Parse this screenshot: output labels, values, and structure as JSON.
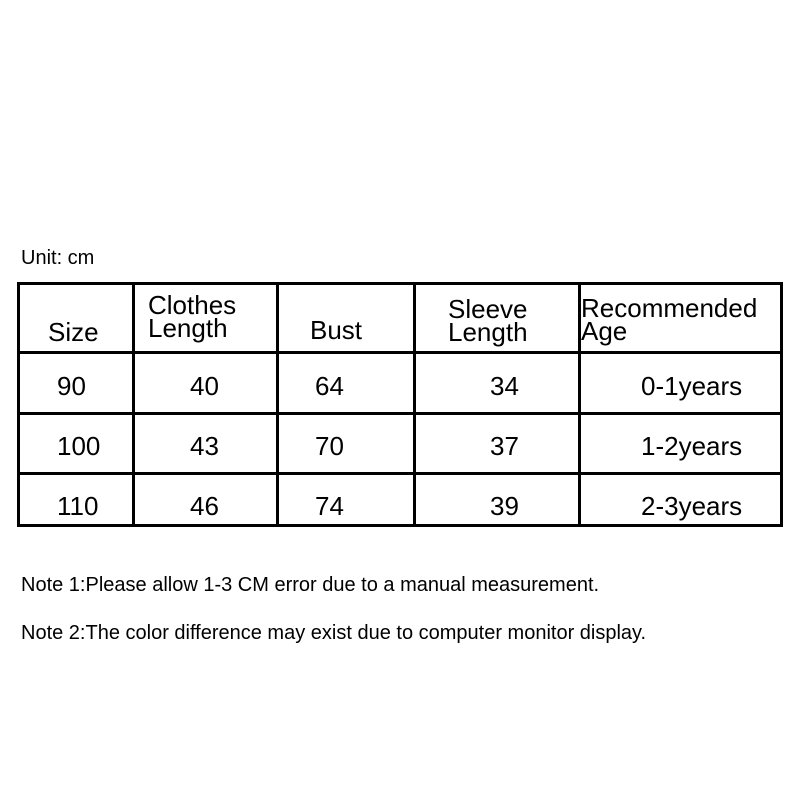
{
  "unit_label": "Unit: cm",
  "table": {
    "headers": [
      {
        "line1": "Size",
        "line2": ""
      },
      {
        "line1": "Clothes",
        "line2": "Length"
      },
      {
        "line1": "Bust",
        "line2": ""
      },
      {
        "line1": "Sleeve",
        "line2": "Length"
      },
      {
        "line1": "Recommended",
        "line2": "Age"
      }
    ],
    "rows": [
      [
        "90",
        "40",
        "64",
        "34",
        "0-1years"
      ],
      [
        "100",
        "43",
        "70",
        "37",
        "1-2years"
      ],
      [
        "110",
        "46",
        "74",
        "39",
        "2-3years"
      ]
    ]
  },
  "notes": [
    "Note 1:Please allow 1-3 CM error due to a manual measurement.",
    "Note 2:The color difference may exist due to computer monitor display."
  ]
}
